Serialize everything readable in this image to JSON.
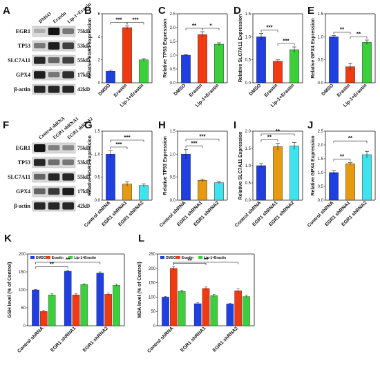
{
  "panel_letters": [
    "A",
    "B",
    "C",
    "D",
    "E",
    "F",
    "G",
    "H",
    "I",
    "J",
    "K",
    "L"
  ],
  "blots": [
    {
      "panel": "A",
      "lanes": [
        "DMSO",
        "Erastin",
        "Lip-1+Erastin"
      ],
      "rows": [
        {
          "protein": "EGR1",
          "kda": "75kD",
          "levels": [
            0.15,
            1.0,
            0.45
          ]
        },
        {
          "protein": "TP53",
          "kda": "53kD",
          "levels": [
            0.45,
            0.95,
            0.75
          ]
        },
        {
          "protein": "SLC7A11",
          "kda": "55kD",
          "levels": [
            0.9,
            0.55,
            0.75
          ]
        },
        {
          "protein": "GPX4",
          "kda": "17kD",
          "levels": [
            0.95,
            0.45,
            0.85
          ]
        },
        {
          "protein": "β-actin",
          "kda": "42kD",
          "levels": [
            0.9,
            0.9,
            0.9
          ]
        }
      ]
    },
    {
      "panel": "F",
      "lanes": [
        "Control shRNA",
        "EGR1 shRNA1",
        "EGR1 shRNA2"
      ],
      "rows": [
        {
          "protein": "EGR1",
          "kda": "75kD",
          "levels": [
            1.0,
            0.4,
            0.35
          ]
        },
        {
          "protein": "TP53",
          "kda": "53kD",
          "levels": [
            0.9,
            0.5,
            0.45
          ]
        },
        {
          "protein": "SLC7A11",
          "kda": "55kD",
          "levels": [
            0.55,
            0.9,
            0.9
          ]
        },
        {
          "protein": "GPX4",
          "kda": "17kD",
          "levels": [
            0.55,
            0.8,
            0.95
          ]
        },
        {
          "protein": "β-actin",
          "kda": "42kD",
          "levels": [
            0.9,
            0.9,
            0.9
          ]
        }
      ]
    }
  ],
  "chart_data": [
    {
      "panel": "B",
      "type": "bar",
      "categories": [
        "DMSO",
        "Erastin",
        "Lip-1+Erastin"
      ],
      "values": [
        1.0,
        4.8,
        2.0
      ],
      "errors": [
        0.1,
        0.15,
        0.1
      ],
      "colors": [
        "#1f3fe0",
        "#f03a12",
        "#3ccf3c"
      ],
      "ylabel": "Relative EGR1 Expression",
      "ylim": [
        0,
        6
      ],
      "yticks": [
        "0",
        "2",
        "4",
        "6"
      ],
      "sig": [
        {
          "from": 0,
          "to": 1,
          "label": "***",
          "level": 0
        },
        {
          "from": 1,
          "to": 2,
          "label": "***",
          "level": 0
        }
      ]
    },
    {
      "panel": "C",
      "type": "bar",
      "categories": [
        "DMSO",
        "Erastin",
        "Lip-1+Erastin"
      ],
      "values": [
        1.0,
        1.75,
        1.4
      ],
      "errors": [
        0.03,
        0.1,
        0.05
      ],
      "colors": [
        "#1f3fe0",
        "#f03a12",
        "#3ccf3c"
      ],
      "ylabel": "Relative TP53 Expression",
      "ylim": [
        0,
        2.5
      ],
      "yticks": [
        "0.0",
        "0.5",
        "1.0",
        "1.5",
        "2.0",
        "2.5"
      ],
      "sig": [
        {
          "from": 0,
          "to": 1,
          "label": "**",
          "level": 0
        },
        {
          "from": 1,
          "to": 2,
          "label": "*",
          "level": 0
        }
      ]
    },
    {
      "panel": "D",
      "type": "bar",
      "categories": [
        "DMSO",
        "Erastin",
        "Lip-1+Erastin"
      ],
      "values": [
        1.0,
        0.47,
        0.72
      ],
      "errors": [
        0.07,
        0.03,
        0.06
      ],
      "colors": [
        "#1f3fe0",
        "#f03a12",
        "#3ccf3c"
      ],
      "ylabel": "Relative SLC7A11 Expression",
      "ylim": [
        0,
        1.5
      ],
      "yticks": [
        "0.0",
        "0.5",
        "1.0",
        "1.5"
      ],
      "sig": [
        {
          "from": 0,
          "to": 1,
          "label": "***",
          "level": 0
        },
        {
          "from": 1,
          "to": 2,
          "label": "***",
          "level": 0
        }
      ]
    },
    {
      "panel": "E",
      "type": "bar",
      "categories": [
        "DMSO",
        "Erastin",
        "Lip-1+Erastin"
      ],
      "values": [
        1.0,
        0.35,
        0.88
      ],
      "errors": [
        0.03,
        0.08,
        0.05
      ],
      "colors": [
        "#1f3fe0",
        "#f03a12",
        "#3ccf3c"
      ],
      "ylabel": "Relative GPX4 Expression",
      "ylim": [
        0,
        1.5
      ],
      "yticks": [
        "0.0",
        "0.5",
        "1.0",
        "1.5"
      ],
      "sig": [
        {
          "from": 0,
          "to": 1,
          "label": "**",
          "level": 0
        },
        {
          "from": 1,
          "to": 2,
          "label": "**",
          "level": 0
        }
      ]
    },
    {
      "panel": "G",
      "type": "bar",
      "categories": [
        "Control shRNA",
        "EGR1 shRNA1",
        "EGR1 shRNA2"
      ],
      "values": [
        1.0,
        0.35,
        0.32
      ],
      "errors": [
        0.08,
        0.05,
        0.03
      ],
      "colors": [
        "#1f3fe0",
        "#e69a10",
        "#3ee3ee"
      ],
      "ylabel": "Relative EGR1 Expression",
      "ylim": [
        0,
        1.5
      ],
      "yticks": [
        "0.0",
        "0.5",
        "1.0",
        "1.5"
      ],
      "sig": [
        {
          "from": 0,
          "to": 1,
          "label": "***",
          "level": 0
        },
        {
          "from": 0,
          "to": 2,
          "label": "***",
          "level": 1
        }
      ]
    },
    {
      "panel": "H",
      "type": "bar",
      "categories": [
        "Control shRNA",
        "EGR1 shRNA1",
        "EGR1 shRNA2"
      ],
      "values": [
        1.0,
        0.43,
        0.38
      ],
      "errors": [
        0.1,
        0.03,
        0.02
      ],
      "colors": [
        "#1f3fe0",
        "#e69a10",
        "#3ee3ee"
      ],
      "ylabel": "Relative TP53 Expression",
      "ylim": [
        0,
        1.5
      ],
      "yticks": [
        "0.0",
        "0.5",
        "1.0",
        "1.5"
      ],
      "sig": [
        {
          "from": 0,
          "to": 1,
          "label": "***",
          "level": 0
        },
        {
          "from": 0,
          "to": 2,
          "label": "***",
          "level": 1
        }
      ]
    },
    {
      "panel": "I",
      "type": "bar",
      "categories": [
        "Control shRNA",
        "EGR1 shRNA1",
        "EGR1 shRNA2"
      ],
      "values": [
        1.0,
        1.55,
        1.57
      ],
      "errors": [
        0.06,
        0.1,
        0.1
      ],
      "colors": [
        "#1f3fe0",
        "#e69a10",
        "#3ee3ee"
      ],
      "ylabel": "Relative SLC7A11 Expression",
      "ylim": [
        0,
        2.0
      ],
      "yticks": [
        "0.0",
        "0.5",
        "1.0",
        "1.5",
        "2.0"
      ],
      "sig": [
        {
          "from": 0,
          "to": 1,
          "label": "**",
          "level": 0
        },
        {
          "from": 0,
          "to": 2,
          "label": "**",
          "level": 1
        }
      ]
    },
    {
      "panel": "J",
      "type": "bar",
      "categories": [
        "Control shRNA",
        "EGR1 shRNA1",
        "EGR1 shRNA2"
      ],
      "values": [
        1.0,
        1.32,
        1.65
      ],
      "errors": [
        0.06,
        0.04,
        0.12
      ],
      "colors": [
        "#1f3fe0",
        "#e69a10",
        "#3ee3ee"
      ],
      "ylabel": "Relative GPX4 Expression",
      "ylim": [
        0,
        2.5
      ],
      "yticks": [
        "0.0",
        "0.5",
        "1.0",
        "1.5",
        "2.0",
        "2.5"
      ],
      "sig": [
        {
          "from": 0,
          "to": 1,
          "label": "**",
          "level": 0
        },
        {
          "from": 0,
          "to": 2,
          "label": "**",
          "level": 1
        }
      ]
    },
    {
      "panel": "K",
      "type": "bar",
      "categories": [
        "Control shRNA",
        "EGR1 shRNA1",
        "EGR1 shRNA2"
      ],
      "series": [
        {
          "name": "DMSO",
          "values": [
            100,
            152,
            147
          ],
          "errors": [
            1,
            3,
            3
          ],
          "color": "#1f3fe0"
        },
        {
          "name": "Erastin",
          "values": [
            40,
            86,
            88
          ],
          "errors": [
            3,
            4,
            3
          ],
          "color": "#f03a12"
        },
        {
          "name": "Lip-1+Erastin",
          "values": [
            86,
            115,
            113
          ],
          "errors": [
            3,
            2,
            3
          ],
          "color": "#3ccf3c"
        }
      ],
      "ylabel": "GSH level (% of Control)",
      "ylim": [
        0,
        200
      ],
      "yticks": [
        "0",
        "50",
        "100",
        "150",
        "200"
      ],
      "sig": [
        {
          "from": "0-0",
          "to": "1-0",
          "label": "**",
          "level": 0
        },
        {
          "from": "0-0",
          "to": "2-0",
          "label": "**",
          "level": 1
        }
      ]
    },
    {
      "panel": "L",
      "type": "bar",
      "categories": [
        "Control shRNA",
        "EGR1 shRNA1",
        "EGR1 shRNA2"
      ],
      "series": [
        {
          "name": "DMSO",
          "values": [
            100,
            77,
            76
          ],
          "errors": [
            2,
            3,
            2
          ],
          "color": "#1f3fe0"
        },
        {
          "name": "Erastin",
          "values": [
            200,
            130,
            122
          ],
          "errors": [
            6,
            5,
            6
          ],
          "color": "#f03a12"
        },
        {
          "name": "Lip-1+Erastin",
          "values": [
            120,
            105,
            102
          ],
          "errors": [
            4,
            4,
            4
          ],
          "color": "#3ccf3c"
        }
      ],
      "ylabel": "MDA level (% of Control)",
      "ylim": [
        0,
        250
      ],
      "yticks": [
        "0",
        "50",
        "100",
        "150",
        "200",
        "250"
      ],
      "sig": [
        {
          "from": "0-1",
          "to": "1-1",
          "label": "**",
          "level": 0
        },
        {
          "from": "0-1",
          "to": "2-1",
          "label": "**",
          "level": 1
        }
      ]
    }
  ]
}
